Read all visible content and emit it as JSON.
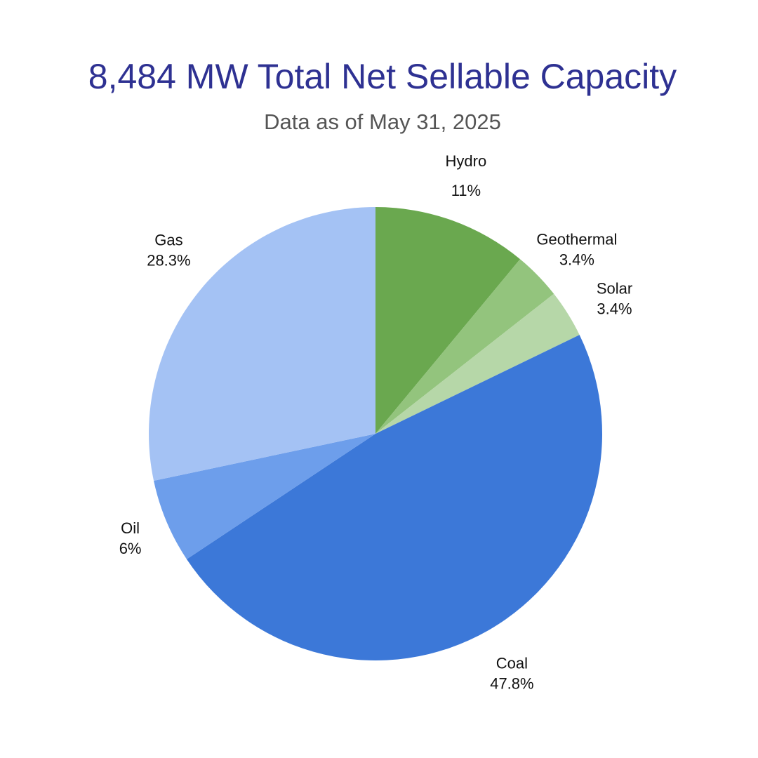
{
  "chart_data": {
    "type": "pie",
    "title": "8,484 MW Total Net Sellable Capacity",
    "subtitle": "Data as of May 31, 2025",
    "slices": [
      {
        "name": "Hydro",
        "value": 11.0,
        "label": "11%",
        "color": "#6aa84f"
      },
      {
        "name": "Geothermal",
        "value": 3.4,
        "label": "3.4%",
        "color": "#93c47d"
      },
      {
        "name": "Solar",
        "value": 3.4,
        "label": "3.4%",
        "color": "#b6d7a8"
      },
      {
        "name": "Coal",
        "value": 47.8,
        "label": "47.8%",
        "color": "#3c78d8"
      },
      {
        "name": "Oil",
        "value": 6.0,
        "label": "6%",
        "color": "#6d9eeb"
      },
      {
        "name": "Gas",
        "value": 28.3,
        "label": "28.3%",
        "color": "#a4c2f4"
      }
    ],
    "start_angle_deg": 0,
    "direction": "clockwise",
    "legend": "none"
  }
}
